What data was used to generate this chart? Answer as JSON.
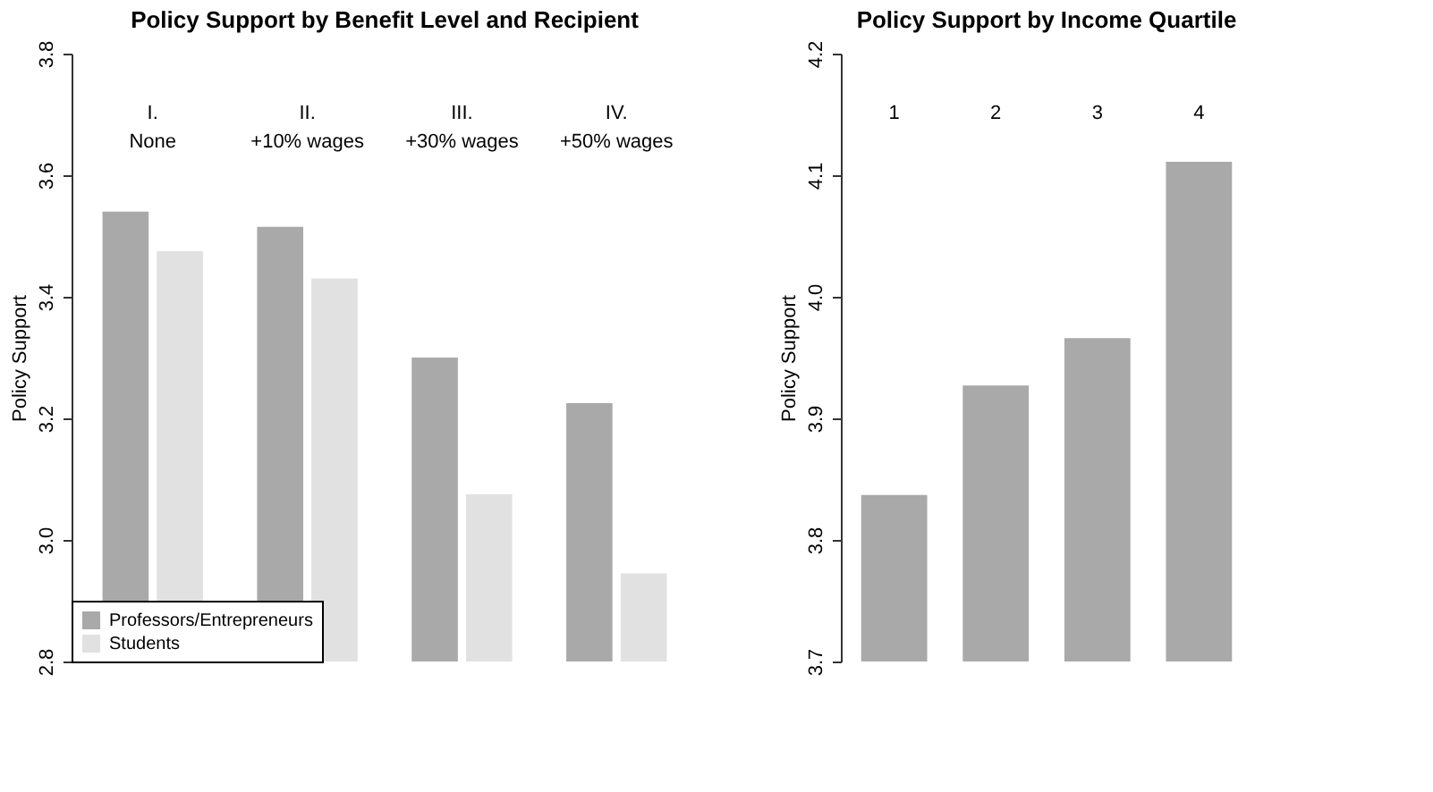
{
  "chart_data": [
    {
      "type": "bar",
      "title": "Policy Support by Benefit Level and Recipient",
      "ylabel": "Policy Support",
      "categories": [
        "I.\nNone",
        "II.\n+10% wages",
        "III.\n+30% wages",
        "IV.\n+50% wages"
      ],
      "series": [
        {
          "name": "Professors/Entrepreneurs",
          "color": "#a9a9a9",
          "values": [
            3.54,
            3.515,
            3.3,
            3.225
          ]
        },
        {
          "name": "Students",
          "color": "#e1e1e1",
          "values": [
            3.475,
            3.43,
            3.075,
            2.945
          ]
        }
      ],
      "ylim": [
        2.8,
        3.8
      ],
      "yticks": [
        2.8,
        {
          "value": 3.0,
          "label": "3.0"
        },
        3.2,
        3.4,
        3.6,
        3.8
      ],
      "legend": "bottom left",
      "grid": false
    },
    {
      "type": "bar",
      "title": "Policy Support by Income Quartile",
      "ylabel": "Policy Support",
      "categories": [
        "1",
        "2",
        "3",
        "4"
      ],
      "color": "#a9a9a9",
      "values": [
        3.837,
        3.927,
        3.966,
        4.111
      ],
      "ylim": [
        3.7,
        4.2
      ],
      "yticks": [
        3.7,
        3.8,
        3.9,
        {
          "value": 4.0,
          "label": "4.0"
        },
        4.1,
        4.2
      ],
      "grid": false
    }
  ]
}
